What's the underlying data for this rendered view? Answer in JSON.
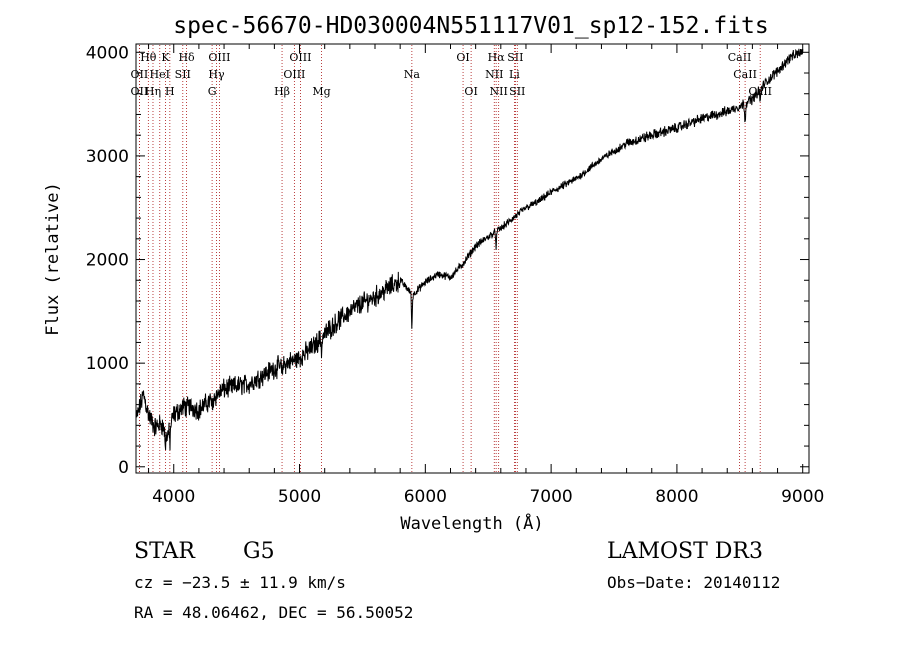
{
  "chart_data": {
    "type": "line",
    "title": "spec-56670-HD030004N551117V01_sp12-152.fits",
    "xlabel": "Wavelength (Å)",
    "ylabel": "Flux (relative)",
    "xlim": [
      3700,
      9050
    ],
    "ylim": [
      -60,
      4080
    ],
    "xticks": [
      4000,
      5000,
      6000,
      7000,
      8000,
      9000
    ],
    "xtick_labels": [
      "4000",
      "5000",
      "6000",
      "7000",
      "8000",
      "9000"
    ],
    "yticks": [
      0,
      1000,
      2000,
      3000,
      4000
    ],
    "ytick_labels": [
      "0",
      "1000",
      "2000",
      "3000",
      "4000"
    ],
    "grid": false,
    "line_color": "#000000",
    "marker_color": "#aa1111",
    "continuum_anchors": {
      "wavelength": [
        3700,
        3760,
        3800,
        3850,
        3900,
        3950,
        4000,
        4100,
        4200,
        4300,
        4400,
        4500,
        4600,
        4700,
        4800,
        4900,
        5000,
        5100,
        5200,
        5300,
        5400,
        5500,
        5600,
        5700,
        5800,
        5900,
        6000,
        6100,
        6200,
        6300,
        6400,
        6500,
        6600,
        6700,
        6800,
        6900,
        7000,
        7200,
        7400,
        7600,
        7800,
        8000,
        8200,
        8400,
        8500,
        8600,
        8700,
        8800,
        8900,
        9000
      ],
      "flux": [
        450,
        700,
        500,
        380,
        420,
        300,
        500,
        600,
        550,
        650,
        750,
        780,
        800,
        880,
        950,
        1000,
        1050,
        1150,
        1280,
        1400,
        1500,
        1580,
        1640,
        1720,
        1800,
        1660,
        1780,
        1860,
        1830,
        1960,
        2130,
        2220,
        2300,
        2400,
        2500,
        2560,
        2650,
        2780,
        2970,
        3120,
        3200,
        3270,
        3360,
        3430,
        3480,
        3550,
        3700,
        3820,
        3950,
        4010
      ]
    },
    "absorption_dips": [
      {
        "wavelength": 3934,
        "depth": 150
      },
      {
        "wavelength": 3969,
        "depth": 150
      },
      {
        "wavelength": 4101,
        "depth": 80
      },
      {
        "wavelength": 4307,
        "depth": 120
      },
      {
        "wavelength": 4861,
        "depth": 100
      },
      {
        "wavelength": 5175,
        "depth": 130
      },
      {
        "wavelength": 5893,
        "depth": 320
      },
      {
        "wavelength": 6563,
        "depth": 140
      },
      {
        "wavelength": 8542,
        "depth": 180
      },
      {
        "wavelength": 8662,
        "depth": 120
      }
    ],
    "line_markers": [
      {
        "label": "Hθ",
        "wavelength": 3798,
        "row": 0
      },
      {
        "label": "OII",
        "wavelength": 3727,
        "row": 1
      },
      {
        "label": "OII",
        "wavelength": 3727,
        "row": 2
      },
      {
        "label": "K",
        "wavelength": 3934,
        "row": 0
      },
      {
        "label": "HeI",
        "wavelength": 3889,
        "row": 1
      },
      {
        "label": "Hη",
        "wavelength": 3835,
        "row": 2
      },
      {
        "label": "Hδ",
        "wavelength": 4102,
        "row": 0
      },
      {
        "label": "SII",
        "wavelength": 4072,
        "row": 1
      },
      {
        "label": "H",
        "wavelength": 3969,
        "row": 2
      },
      {
        "label": "OIII",
        "wavelength": 4363,
        "row": 0
      },
      {
        "label": "Hγ",
        "wavelength": 4340,
        "row": 1
      },
      {
        "label": "G",
        "wavelength": 4305,
        "row": 2
      },
      {
        "label": "OIII",
        "wavelength": 5007,
        "row": 0
      },
      {
        "label": "OIII",
        "wavelength": 4959,
        "row": 1
      },
      {
        "label": "Hβ",
        "wavelength": 4861,
        "row": 2
      },
      {
        "label": "Mg",
        "wavelength": 5175,
        "row": 2
      },
      {
        "label": "Na",
        "wavelength": 5893,
        "row": 1
      },
      {
        "label": "OI",
        "wavelength": 6300,
        "row": 0
      },
      {
        "label": "OI",
        "wavelength": 6364,
        "row": 2
      },
      {
        "label": "Hα",
        "wavelength": 6563,
        "row": 0
      },
      {
        "label": "SII",
        "wavelength": 6716,
        "row": 0
      },
      {
        "label": "NII",
        "wavelength": 6548,
        "row": 1
      },
      {
        "label": "Li",
        "wavelength": 6708,
        "row": 1
      },
      {
        "label": "NII",
        "wavelength": 6583,
        "row": 2
      },
      {
        "label": "SII",
        "wavelength": 6731,
        "row": 2
      },
      {
        "label": "CaII",
        "wavelength": 8498,
        "row": 0
      },
      {
        "label": "CaII",
        "wavelength": 8542,
        "row": 1
      },
      {
        "label": "CaII",
        "wavelength": 8662,
        "row": 2
      }
    ]
  },
  "info": {
    "object_type": "STAR",
    "subclass": "G5",
    "survey": "LAMOST DR3",
    "redshift_text": "cz = −23.5 ± 11.9 km/s",
    "obs_date": "Obs−Date: 20140112",
    "coords": "RA =  48.06462, DEC =  56.50052"
  }
}
